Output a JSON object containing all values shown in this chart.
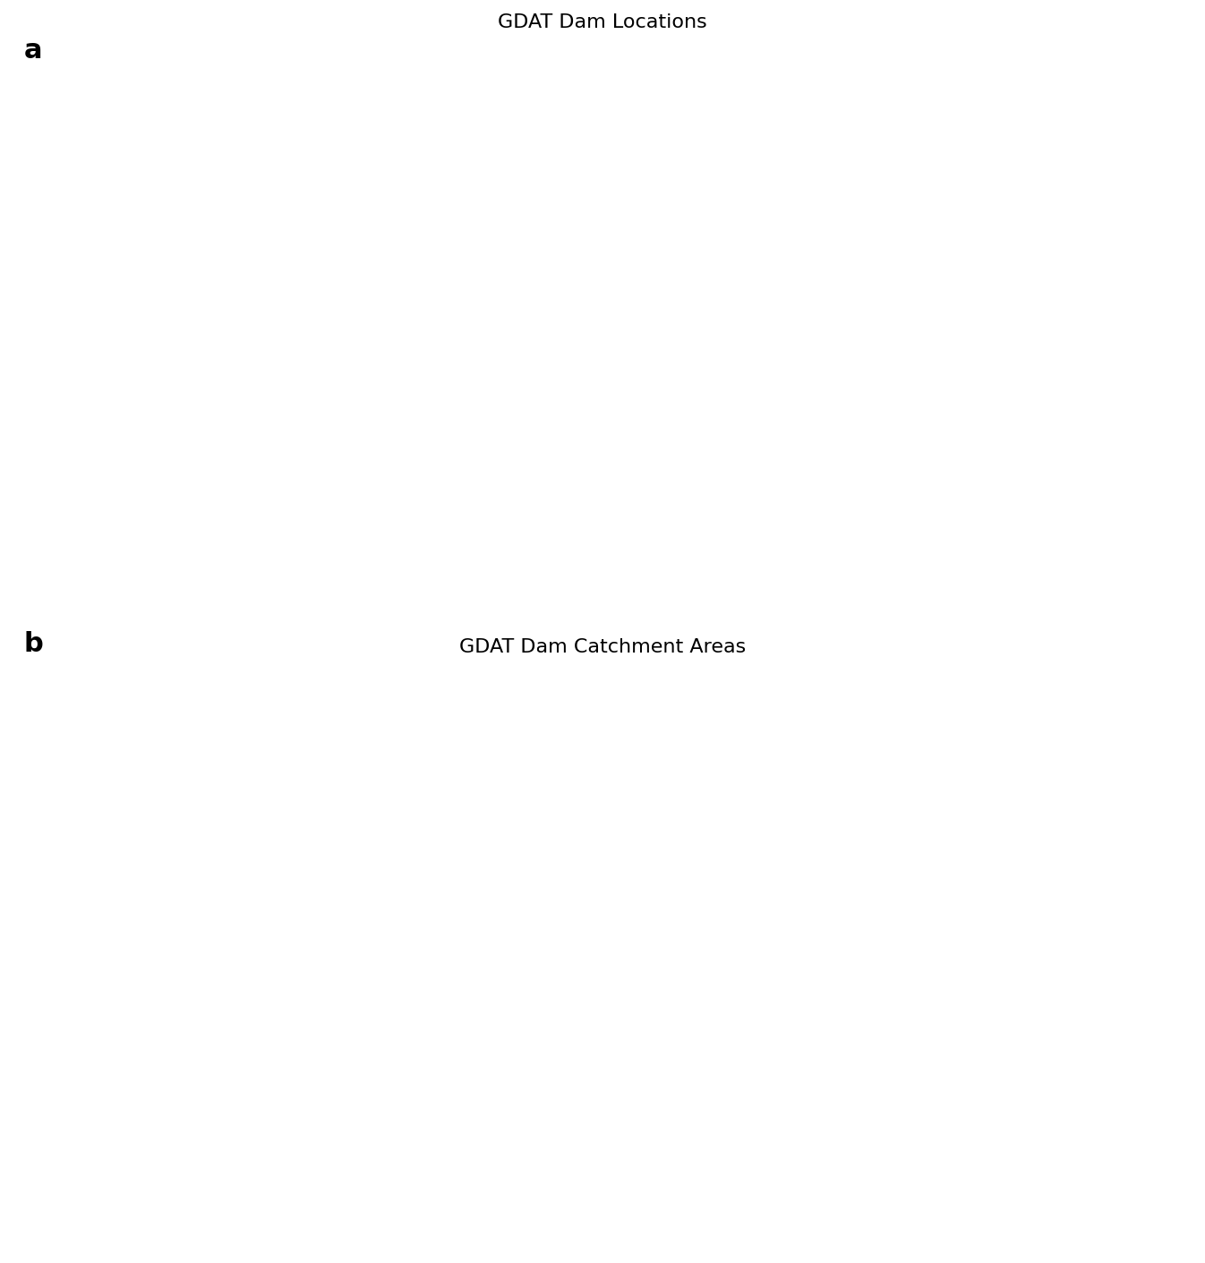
{
  "title_a": "GDAT Dam Locations",
  "title_b": "GDAT Dam Catchment Areas",
  "label_a": "a",
  "label_b": "b",
  "background_color": "#ffffff",
  "land_color_a": "#b0b0b0",
  "ocean_color_a": "#ffffff",
  "land_color_b": "#b0b0b0",
  "ocean_color_b": "#ffffff",
  "point_color": "#1565C0",
  "catchment_color": "#4472A8",
  "border_color": "#e0e0e0",
  "title_fontsize": 16,
  "label_fontsize": 22,
  "point_size": 1.5,
  "figsize": [
    13.46,
    14.11
  ]
}
